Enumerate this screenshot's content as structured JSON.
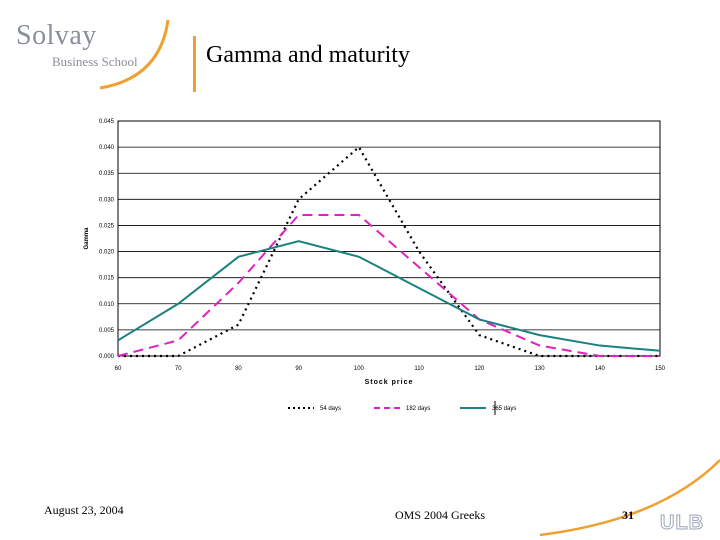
{
  "header": {
    "logo_main": "Solvay",
    "logo_sub": "Business School",
    "title": "Gamma and maturity"
  },
  "footer": {
    "date": "August 23, 2004",
    "center": "OMS 2004 Greeks",
    "page_number": "31",
    "ulb_logo": "ULB"
  },
  "colors": {
    "accent": "#f0a030",
    "series_54": "#000000",
    "series_182": "#e020c0",
    "series_365": "#1a8080"
  },
  "chart_data": {
    "type": "line",
    "title": "",
    "xlabel": "Stock price",
    "ylabel": "Gamma",
    "x": [
      60,
      70,
      80,
      90,
      100,
      110,
      120,
      130,
      140,
      150
    ],
    "xlim": [
      60,
      150
    ],
    "ylim": [
      0,
      0.045
    ],
    "x_ticks": [
      "60",
      "70",
      "80",
      "90",
      "100",
      "110",
      "120",
      "130",
      "140",
      "150"
    ],
    "y_ticks": [
      "0.000",
      "0.005",
      "0.010",
      "0.015",
      "0.020",
      "0.025",
      "0.030",
      "0.035",
      "0.040",
      "0.045"
    ],
    "grid": "horizontal",
    "legend_position": "bottom",
    "series": [
      {
        "name": "54 days",
        "style": "dotted",
        "color": "#000000",
        "values": [
          0.0,
          0.0,
          0.006,
          0.03,
          0.04,
          0.02,
          0.004,
          0.0,
          0.0,
          0.0
        ]
      },
      {
        "name": "182 days",
        "style": "dashed",
        "color": "#e020c0",
        "values": [
          0.0,
          0.003,
          0.014,
          0.027,
          0.027,
          0.017,
          0.007,
          0.002,
          0.0,
          0.0
        ]
      },
      {
        "name": "365 days",
        "style": "solid",
        "color": "#1a8080",
        "values": [
          0.003,
          0.01,
          0.019,
          0.022,
          0.019,
          0.013,
          0.007,
          0.004,
          0.002,
          0.001
        ]
      }
    ]
  }
}
